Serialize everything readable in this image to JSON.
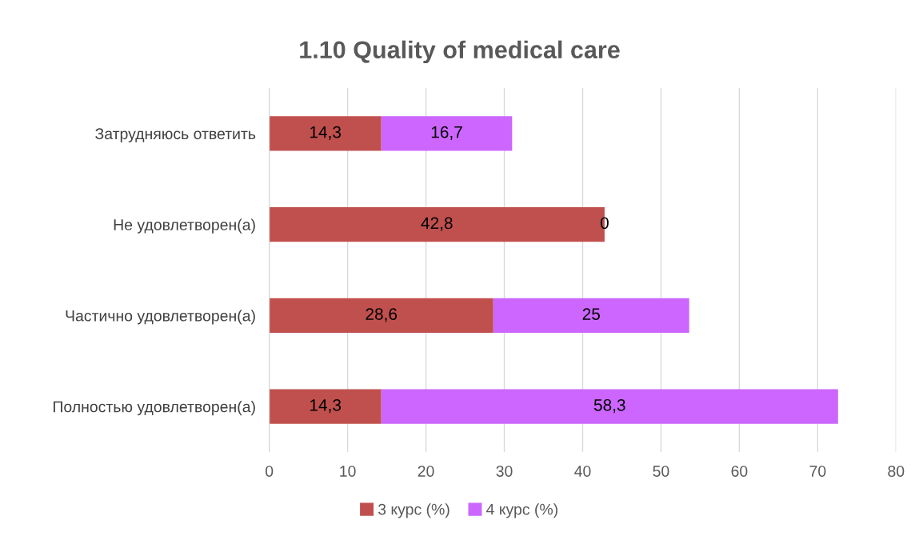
{
  "chart_data": {
    "type": "bar",
    "orientation": "horizontal",
    "stacked": true,
    "title": "1.10 Quality of medical care",
    "categories": [
      "Затрудняюсь ответить",
      "Не удовлетворен(а)",
      "Частично удовлетворен(а)",
      "Полностью удовлетворен(а)"
    ],
    "series": [
      {
        "name": "3 курс (%)",
        "color": "#c0504d",
        "values": [
          14.3,
          42.8,
          28.6,
          14.3
        ],
        "value_labels": [
          "14,3",
          "42,8",
          "28,6",
          "14,3"
        ]
      },
      {
        "name": "4 курс (%)",
        "color": "#cc66ff",
        "values": [
          16.7,
          0,
          25,
          58.3
        ],
        "value_labels": [
          "16,7",
          "0",
          "25",
          "58,3"
        ]
      }
    ],
    "xlim": [
      0,
      80
    ],
    "xticks": [
      0,
      10,
      20,
      30,
      40,
      50,
      60,
      70,
      80
    ],
    "grid": "x",
    "legend": "bottom"
  }
}
